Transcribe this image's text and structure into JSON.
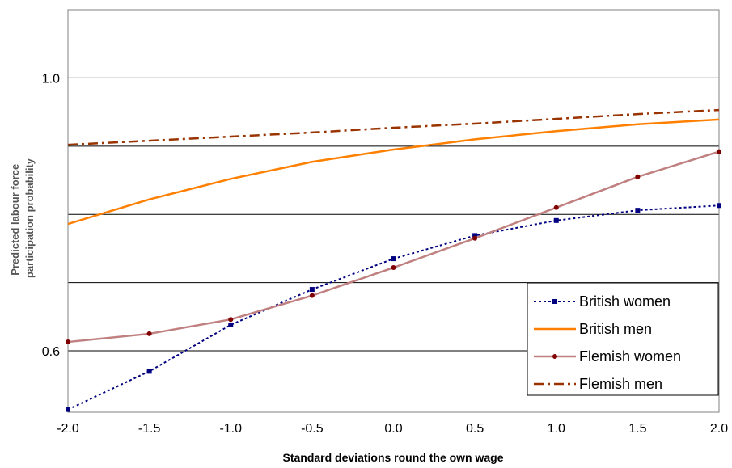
{
  "chart_data": {
    "type": "line",
    "xlabel": "Standard deviations round the own wage",
    "ylabel": "Predicted labour force participation probability",
    "ylabel_lines": [
      "Predicted labour force",
      "participation probability"
    ],
    "xlim": [
      -2.0,
      2.0
    ],
    "ylim": [
      0.51,
      1.1
    ],
    "x_ticks": [
      -2.0,
      -1.5,
      -1.0,
      -0.5,
      0.0,
      0.5,
      1.0,
      1.5,
      2.0
    ],
    "x_tick_labels": [
      "-2.0",
      "-1.5",
      "-1.0",
      "-0.5",
      "0.0",
      "0.5",
      "1.0",
      "1.5",
      "2.0"
    ],
    "y_ticks": [
      0.6,
      1.0
    ],
    "y_tick_labels": [
      "0.6",
      "1.0"
    ],
    "gridlines_y": [
      0.6,
      0.7,
      0.8,
      0.9,
      1.0
    ],
    "grid": true,
    "legend_position": "bottom-right",
    "x": [
      -2.0,
      -1.5,
      -1.0,
      -0.5,
      0.0,
      0.5,
      1.0,
      1.5,
      2.0
    ],
    "series": [
      {
        "name": "British women",
        "color": "#000080",
        "dash": "dotted",
        "marker": "square",
        "values": [
          0.514,
          0.57,
          0.638,
          0.69,
          0.735,
          0.769,
          0.791,
          0.806,
          0.813
        ]
      },
      {
        "name": "British men",
        "color": "#ff8000",
        "dash": "solid",
        "marker": "none",
        "values": [
          0.786,
          0.822,
          0.852,
          0.877,
          0.895,
          0.91,
          0.922,
          0.932,
          0.939
        ]
      },
      {
        "name": "Flemish women",
        "color": "#c08080",
        "dash": "solid",
        "marker": "dot",
        "values": [
          0.613,
          0.625,
          0.646,
          0.681,
          0.722,
          0.765,
          0.81,
          0.855,
          0.892
        ]
      },
      {
        "name": "Flemish men",
        "color": "#993300",
        "dash": "dashdot",
        "marker": "none",
        "values": [
          0.902,
          0.908,
          0.914,
          0.92,
          0.927,
          0.933,
          0.94,
          0.947,
          0.953
        ]
      }
    ]
  }
}
